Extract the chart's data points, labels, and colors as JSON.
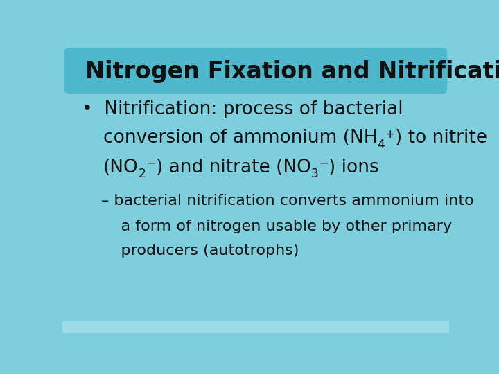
{
  "title": "Nitrogen Fixation and Nitrification",
  "title_bg_color": "#4db8cc",
  "slide_bg_color": "#7dcfde",
  "bottom_bar_color": "#9ddbe8",
  "title_text_color": "#111111",
  "body_text_color": "#111111",
  "title_fontsize": 24,
  "bullet_fontsize": 19,
  "sub_bullet_fontsize": 16,
  "title_font_weight": "bold",
  "bullet_line1": "•  Nitrification: process of bacterial",
  "sub_bullet_line1": "– bacterial nitrification converts ammonium into",
  "sub_bullet_line2": "    a form of nitrogen usable by other primary",
  "sub_bullet_line3": "    producers (autotrophs)"
}
